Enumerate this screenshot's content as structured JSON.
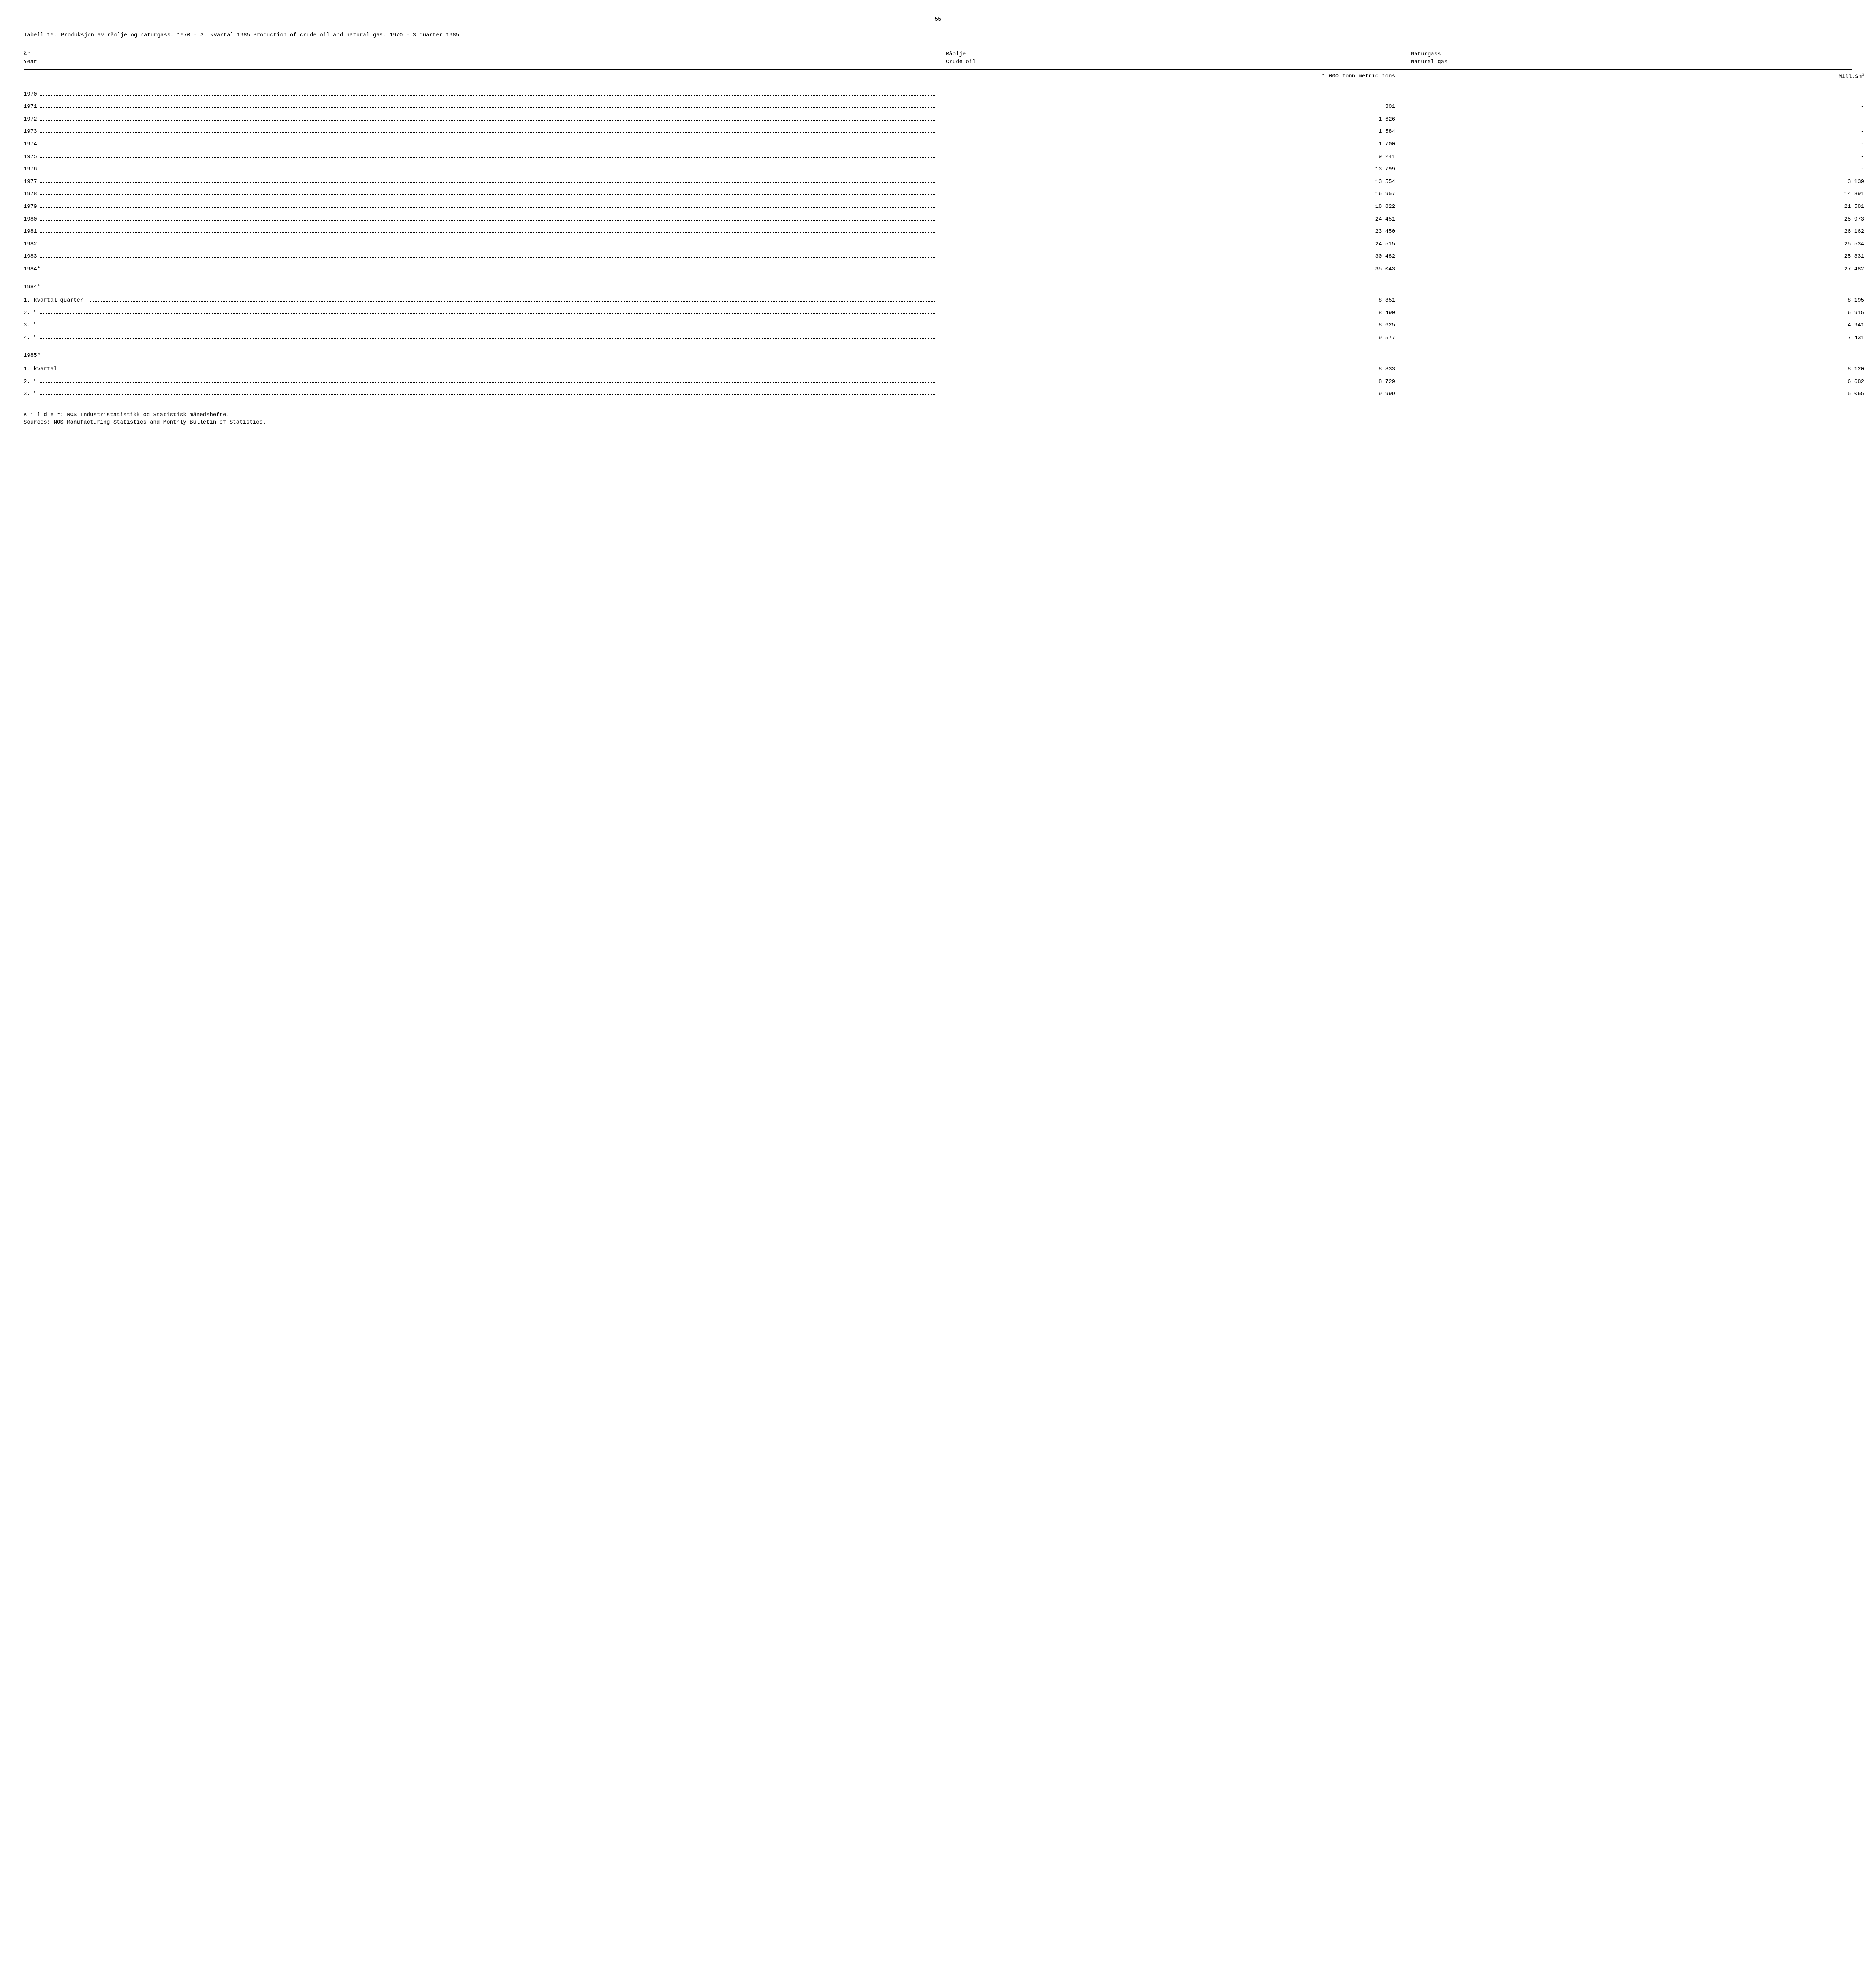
{
  "page_number": "55",
  "table_label": "Tabell 16.",
  "table_title": "Produksjon av råolje og naturgass.  1970 - 3. kvartal 1985  Production of crude oil and natural gas.  1970 - 3 quarter 1985",
  "headers": {
    "year_no": "År",
    "year_en": "Year",
    "oil_no": "Råolje",
    "oil_en": "Crude oil",
    "gas_no": "Naturgass",
    "gas_en": "Natural gas",
    "oil_unit": "1 000 tonn  metric tons",
    "gas_unit": "Mill.Sm",
    "gas_unit_sup": "3"
  },
  "annual_rows": [
    {
      "year": "1970",
      "oil": "-",
      "gas": "-"
    },
    {
      "year": "1971",
      "oil": "301",
      "gas": "-"
    },
    {
      "year": "1972",
      "oil": "1 626",
      "gas": "-"
    },
    {
      "year": "1973",
      "oil": "1 584",
      "gas": "-"
    },
    {
      "year": "1974",
      "oil": "1 700",
      "gas": "-"
    },
    {
      "year": "1975",
      "oil": "9 241",
      "gas": "-"
    },
    {
      "year": "1976",
      "oil": "13 799",
      "gas": "-"
    },
    {
      "year": "1977",
      "oil": "13 554",
      "gas": "3 139"
    },
    {
      "year": "1978",
      "oil": "16 957",
      "gas": "14 891"
    },
    {
      "year": "1979",
      "oil": "18 822",
      "gas": "21 581"
    },
    {
      "year": "1980",
      "oil": "24 451",
      "gas": "25 973"
    },
    {
      "year": "1981",
      "oil": "23 450",
      "gas": "26 162"
    },
    {
      "year": "1982",
      "oil": "24 515",
      "gas": "25 534"
    },
    {
      "year": "1983",
      "oil": "30 482",
      "gas": "25 831"
    },
    {
      "year": "1984*",
      "oil": "35 043",
      "gas": "27 482"
    }
  ],
  "section_1984": "1984*",
  "q1984_rows": [
    {
      "label": "1. kvartal   quarter",
      "oil": "8 351",
      "gas": "8 195"
    },
    {
      "label": "2.    \"",
      "oil": "8 490",
      "gas": "6 915"
    },
    {
      "label": "3.    \"",
      "oil": "8 625",
      "gas": "4 941"
    },
    {
      "label": "4.    \"",
      "oil": "9 577",
      "gas": "7 431"
    }
  ],
  "section_1985": "1985*",
  "q1985_rows": [
    {
      "label": "1. kvartal",
      "oil": "8 833",
      "gas": "8 120"
    },
    {
      "label": "2.    \"",
      "oil": "8 729",
      "gas": "6 682"
    },
    {
      "label": "3.    \"",
      "oil": "9 999",
      "gas": "5 065"
    }
  ],
  "sources": {
    "no": "K i l d e r:  NOS Industristatistikk og Statistisk månedshefte.",
    "en": "Sources:  NOS Manufacturing Statistics and Monthly Bulletin of Statistics."
  }
}
